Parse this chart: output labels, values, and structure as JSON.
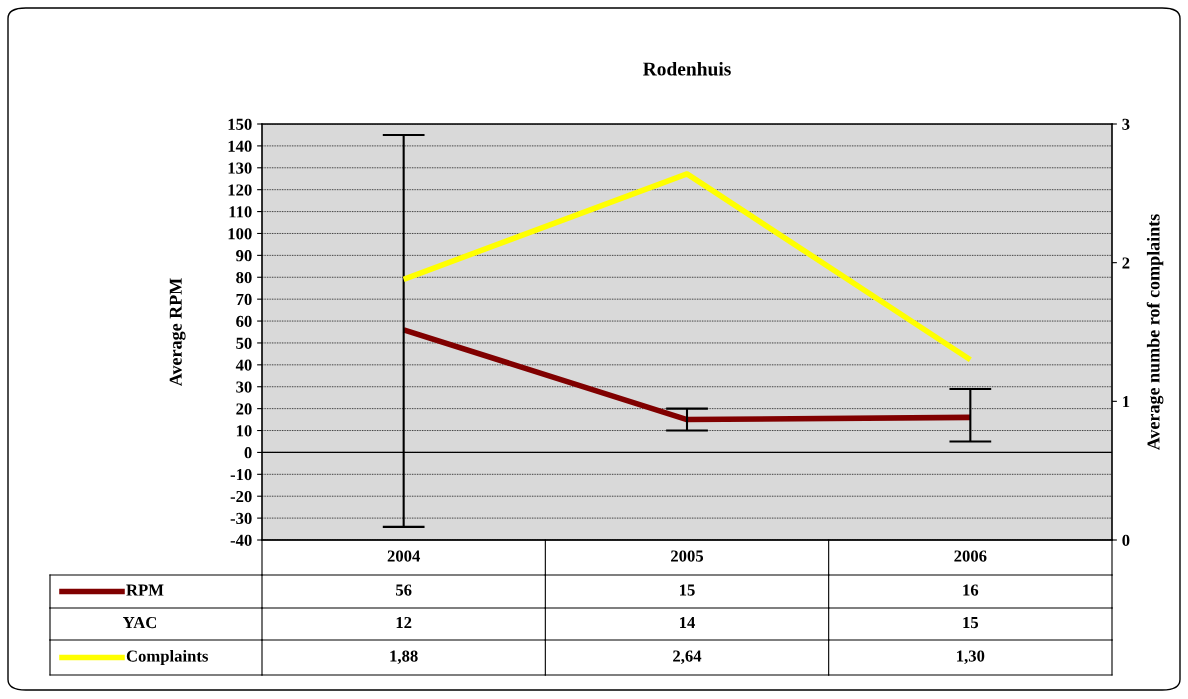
{
  "chart_data": {
    "type": "line",
    "title": "Rodenhuis",
    "ylabel": "Average RPM",
    "y2label": "Average numbe rof complaints",
    "categories": [
      "2004",
      "2005",
      "2006"
    ],
    "series": [
      {
        "name": "RPM",
        "color": "#800000",
        "values": [
          56,
          15,
          16
        ],
        "errors": [
          [
            -34,
            145
          ],
          [
            10,
            20
          ],
          [
            5,
            29
          ]
        ],
        "value_labels": [
          "56",
          "15",
          "16"
        ]
      },
      {
        "name": "YAC",
        "values": [
          null,
          null,
          null
        ],
        "value_labels": [
          "12",
          "14",
          "15"
        ]
      },
      {
        "name": "Complaints",
        "color": "#ffff00",
        "axis": "y2",
        "values": [
          1.88,
          2.64,
          1.3
        ],
        "value_labels": [
          "1,88",
          "2,64",
          "1,30"
        ]
      }
    ],
    "ylim": [
      -40,
      150
    ],
    "yticks": [
      -40,
      -30,
      -20,
      -10,
      0,
      10,
      20,
      30,
      40,
      50,
      60,
      70,
      80,
      90,
      100,
      110,
      120,
      130,
      140,
      150
    ],
    "y2lim": [
      0,
      3
    ],
    "y2ticks": [
      0,
      1,
      2,
      3
    ],
    "grid": "y",
    "legend": "bottom",
    "marker": "none",
    "line_style": "solid"
  }
}
